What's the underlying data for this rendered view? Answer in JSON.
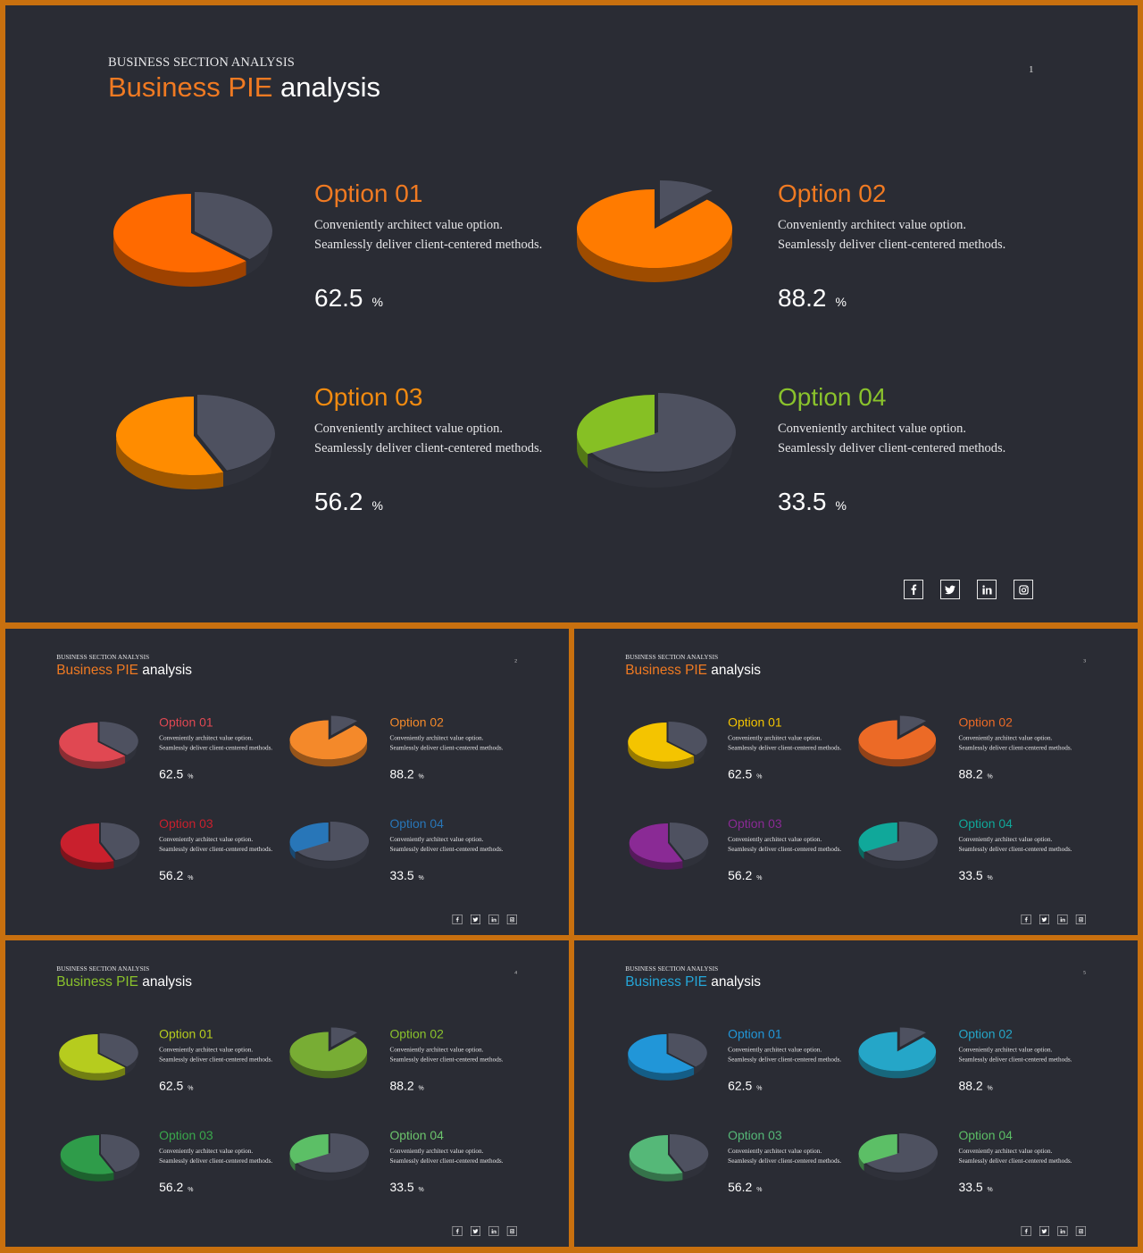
{
  "slides": [
    {
      "kicker": "BUSINESS SECTION ANALYSIS",
      "title_accent": "Business PIE",
      "title_rest": "analysis",
      "page": "1",
      "accent": "#f07a22",
      "options": [
        {
          "title": "Option 01",
          "title_color": "#f07a22",
          "color": "#ff6a00",
          "value": "62.5",
          "unit": "%"
        },
        {
          "title": "Option 02",
          "title_color": "#f07a22",
          "color": "#ff7b00",
          "value": "88.2",
          "unit": "%"
        },
        {
          "title": "Option 03",
          "title_color": "#f28b10",
          "color": "#ff8c00",
          "value": "56.2",
          "unit": "%"
        },
        {
          "title": "Option 04",
          "title_color": "#8ac22c",
          "color": "#86c024",
          "value": "33.5",
          "unit": "%"
        }
      ]
    },
    {
      "kicker": "BUSINESS SECTION ANALYSIS",
      "title_accent": "Business PIE",
      "title_rest": "analysis",
      "page": "2",
      "accent": "#f07a22",
      "options": [
        {
          "title": "Option 01",
          "title_color": "#e04852",
          "color": "#e04852",
          "value": "62.5",
          "unit": "%"
        },
        {
          "title": "Option 02",
          "title_color": "#f4892a",
          "color": "#f4892a",
          "value": "88.2",
          "unit": "%"
        },
        {
          "title": "Option 03",
          "title_color": "#c9202d",
          "color": "#c9202d",
          "value": "56.2",
          "unit": "%"
        },
        {
          "title": "Option 04",
          "title_color": "#2876b8",
          "color": "#2876b8",
          "value": "33.5",
          "unit": "%"
        }
      ]
    },
    {
      "kicker": "BUSINESS SECTION ANALYSIS",
      "title_accent": "Business PIE",
      "title_rest": "analysis",
      "page": "3",
      "accent": "#f07a22",
      "options": [
        {
          "title": "Option 01",
          "title_color": "#f4c400",
          "color": "#f4c400",
          "value": "62.5",
          "unit": "%"
        },
        {
          "title": "Option 02",
          "title_color": "#ec6a26",
          "color": "#ec6a26",
          "value": "88.2",
          "unit": "%"
        },
        {
          "title": "Option 03",
          "title_color": "#8a2a95",
          "color": "#8a2a95",
          "value": "56.2",
          "unit": "%"
        },
        {
          "title": "Option 04",
          "title_color": "#10a89a",
          "color": "#10a89a",
          "value": "33.5",
          "unit": "%"
        }
      ]
    },
    {
      "kicker": "BUSINESS SECTION ANALYSIS",
      "title_accent": "Business PIE",
      "title_rest": "analysis",
      "page": "4",
      "accent": "#8ac22c",
      "options": [
        {
          "title": "Option 01",
          "title_color": "#b6cc1e",
          "color": "#b6cc1e",
          "value": "62.5",
          "unit": "%"
        },
        {
          "title": "Option 02",
          "title_color": "#8ac22c",
          "color": "#78ad34",
          "value": "88.2",
          "unit": "%"
        },
        {
          "title": "Option 03",
          "title_color": "#3aa84c",
          "color": "#2f9c4a",
          "value": "56.2",
          "unit": "%"
        },
        {
          "title": "Option 04",
          "title_color": "#6cc46c",
          "color": "#5cbf66",
          "value": "33.5",
          "unit": "%"
        }
      ]
    },
    {
      "kicker": "BUSINESS SECTION ANALYSIS",
      "title_accent": "Business PIE",
      "title_rest": "analysis",
      "page": "5",
      "accent": "#25a6d8",
      "options": [
        {
          "title": "Option 01",
          "title_color": "#2196d8",
          "color": "#2196d8",
          "value": "62.5",
          "unit": "%"
        },
        {
          "title": "Option 02",
          "title_color": "#25a6c8",
          "color": "#25a6c8",
          "value": "88.2",
          "unit": "%"
        },
        {
          "title": "Option 03",
          "title_color": "#55b878",
          "color": "#55b878",
          "value": "56.2",
          "unit": "%"
        },
        {
          "title": "Option 04",
          "title_color": "#5cbf66",
          "color": "#5cbf66",
          "value": "33.5",
          "unit": "%"
        }
      ]
    }
  ],
  "desc_line1": "Conveniently architect value option.",
  "desc_line2": "Seamlessly deliver client-centered methods.",
  "base_color": "#4e5160",
  "social_icons": [
    "facebook-icon",
    "twitter-icon",
    "linkedin-icon",
    "instagram-icon"
  ],
  "chart_data": [
    {
      "type": "pie",
      "categories": [
        "Option 01",
        "Option 02",
        "Option 03",
        "Option 04"
      ],
      "values": [
        62.5,
        88.2,
        56.2,
        33.5
      ],
      "unit": "%"
    }
  ]
}
